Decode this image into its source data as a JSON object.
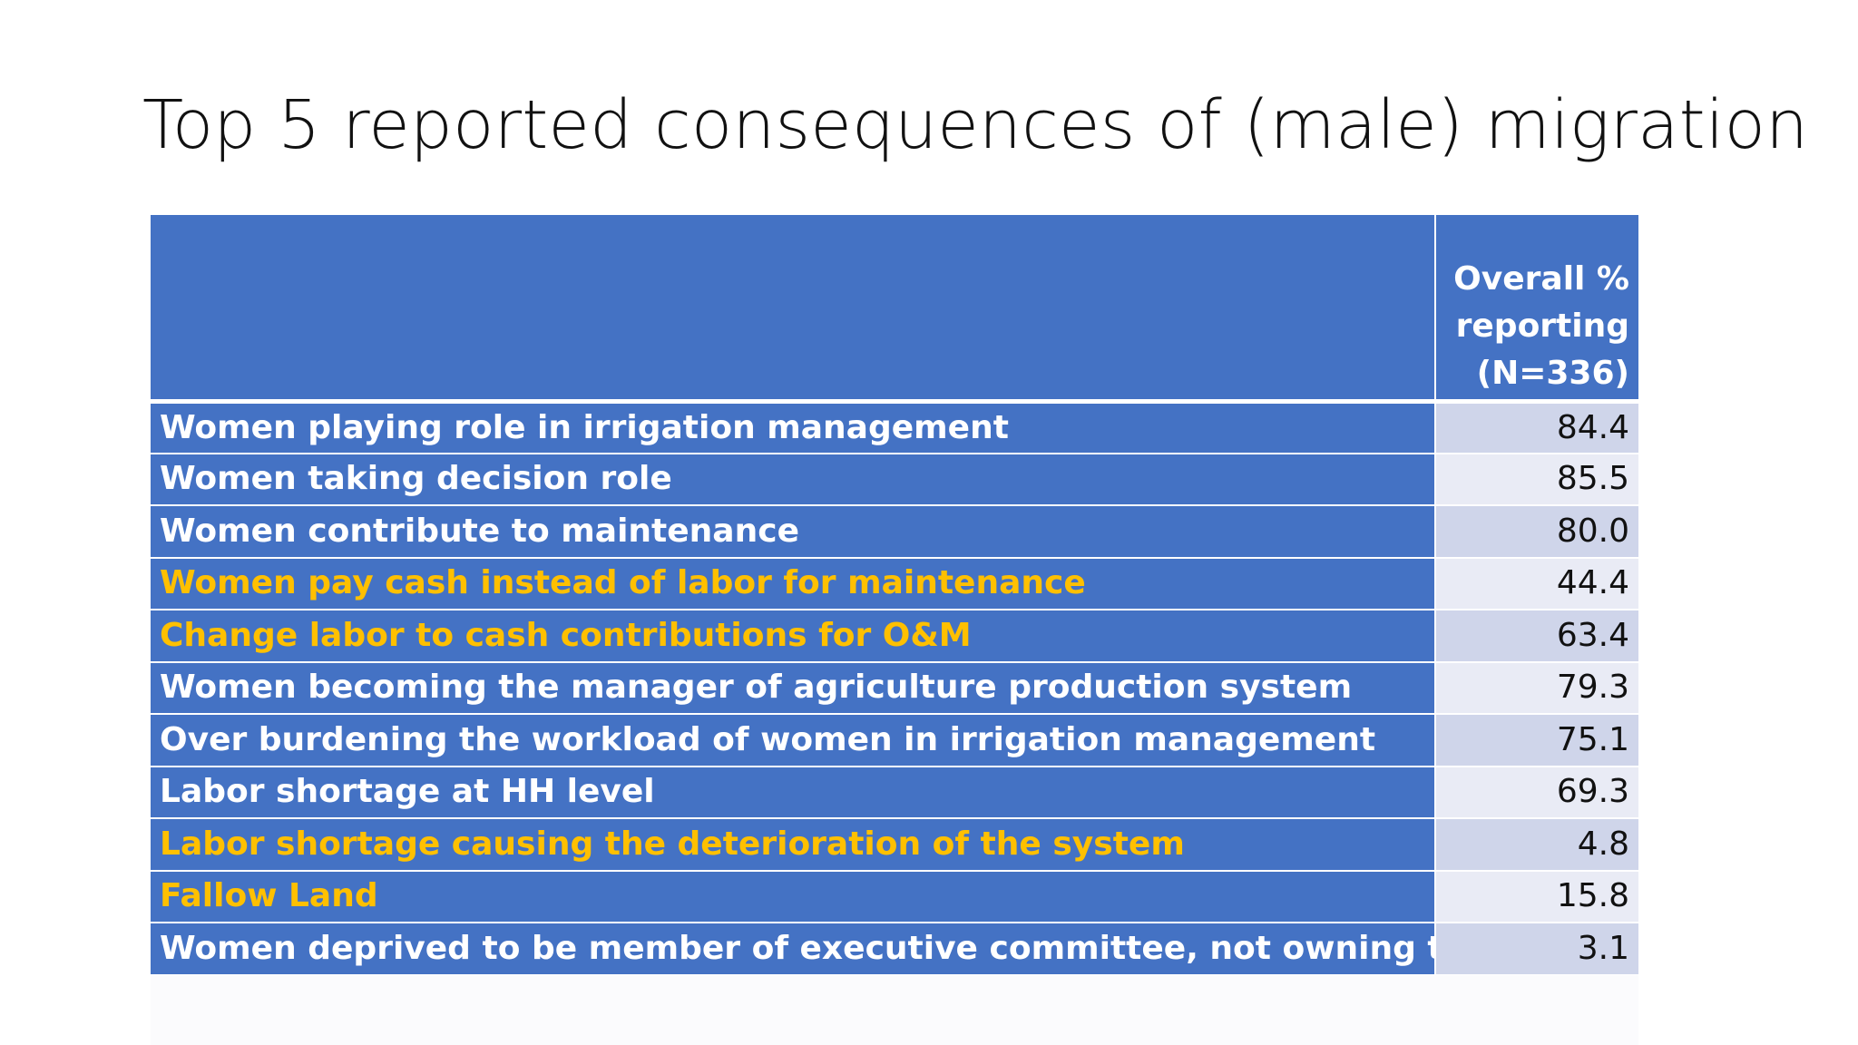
{
  "slide": {
    "title": "Top 5 reported consequences of (male) migration"
  },
  "table": {
    "header": {
      "label_col": "",
      "value_col": "Overall % reporting (N=336)"
    },
    "rows": [
      {
        "label": "Women playing role in irrigation management",
        "value": "84.4",
        "highlight": false
      },
      {
        "label": "Women taking decision role",
        "value": "85.5",
        "highlight": false
      },
      {
        "label": "Women contribute to maintenance",
        "value": "80.0",
        "highlight": false
      },
      {
        "label": "Women pay cash instead of labor for maintenance",
        "value": "44.4",
        "highlight": true
      },
      {
        "label": "Change labor to cash contributions for O&M",
        "value": "63.4",
        "highlight": true
      },
      {
        "label": "Women becoming the manager of agriculture production system",
        "value": "79.3",
        "highlight": false
      },
      {
        "label": "Over burdening the workload of women in irrigation management",
        "value": "75.1",
        "highlight": false
      },
      {
        "label": "Labor shortage at HH level",
        "value": "69.3",
        "highlight": false
      },
      {
        "label": "Labor shortage causing the deterioration of the system",
        "value": "4.8",
        "highlight": true
      },
      {
        "label": "Fallow Land",
        "value": "15.8",
        "highlight": true
      },
      {
        "label": "Women deprived to be member of executive committee, not owning the land",
        "value": "3.1",
        "highlight": false
      }
    ]
  },
  "colors": {
    "header_bg": "#4472c4",
    "highlight_text": "#ffc000",
    "row_odd_value_bg": "#cfd5ea",
    "row_even_value_bg": "#e9ebf5"
  }
}
